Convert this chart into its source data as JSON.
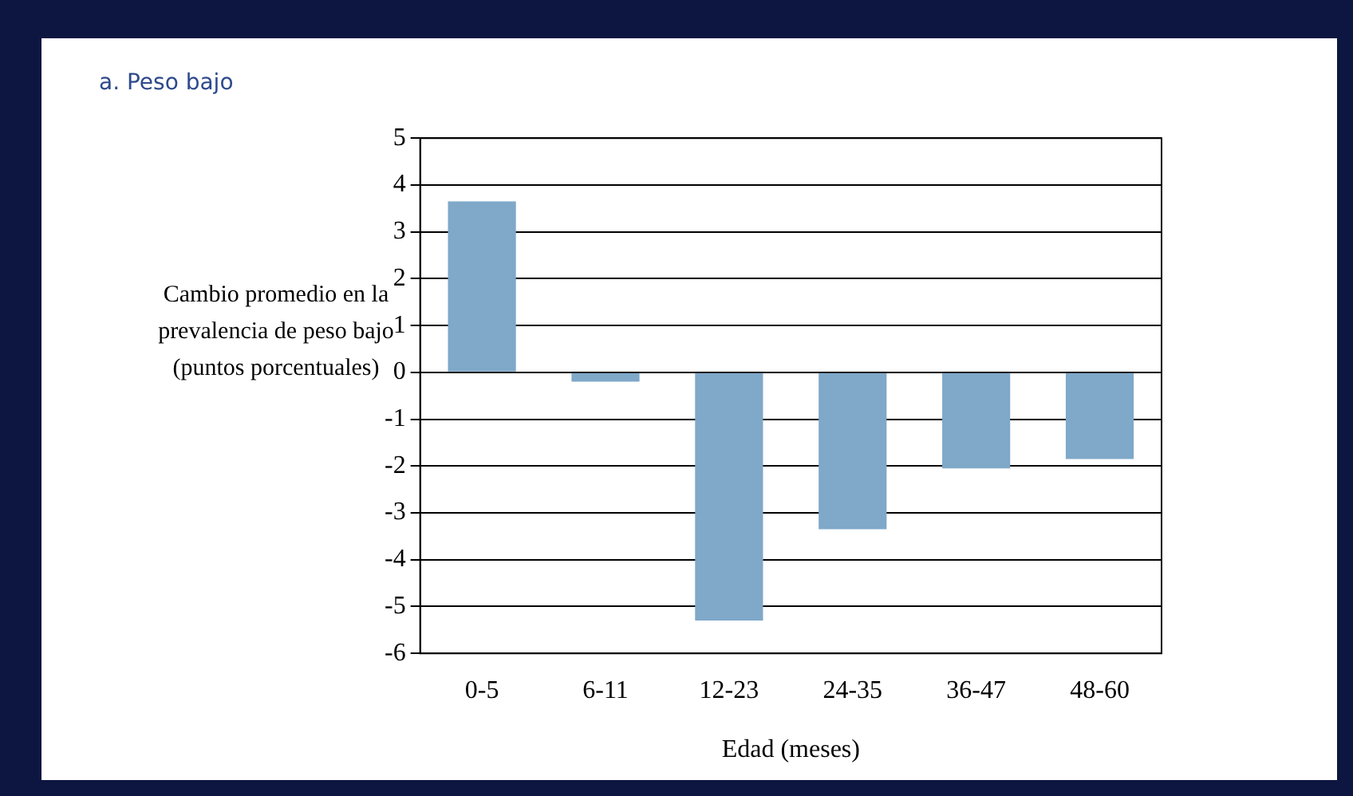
{
  "chart_data": {
    "type": "bar",
    "title": "a. Peso bajo",
    "ylabel": "Cambio promedio en la prevalencia de peso bajo (puntos porcentuales)",
    "xlabel": "Edad (meses)",
    "categories": [
      "0-5",
      "6-11",
      "12-23",
      "24-35",
      "36-47",
      "48-60"
    ],
    "values": [
      3.65,
      -0.2,
      -5.3,
      -3.35,
      -2.05,
      -1.85
    ],
    "color": "#7fa8c9",
    "ylim": [
      -6,
      5
    ],
    "yticks": [
      -6,
      -5,
      -4,
      -3,
      -2,
      -1,
      0,
      1,
      2,
      3,
      4,
      5
    ],
    "grid": "y",
    "legend": false
  }
}
